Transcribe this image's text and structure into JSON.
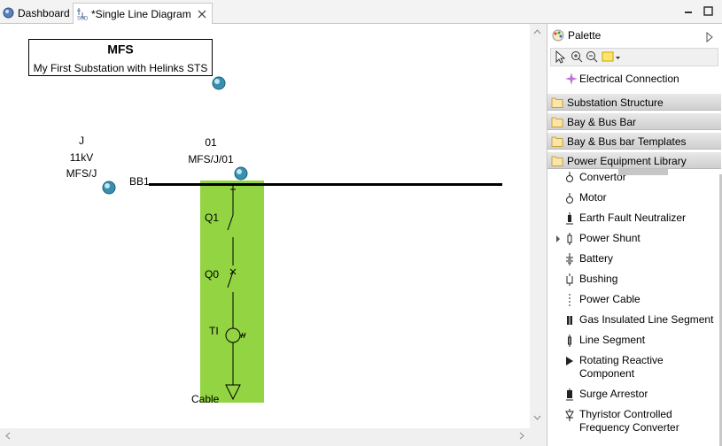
{
  "tabs": [
    "Dashboard",
    "*Single Line Diagram"
  ],
  "diagram": {
    "title": "MFS",
    "subtitle": "My First Substation with Helinks STS",
    "voltage_level": {
      "name": "J",
      "voltage": "11kV",
      "path": "MFS/J"
    },
    "bay": {
      "name": "01",
      "path": "MFS/J/01"
    },
    "busbar": "BB1",
    "equipment": [
      "Q1",
      "Q0",
      "TI",
      "Cable"
    ]
  },
  "palette": {
    "title": "Palette",
    "tools": [
      "Electrical Connection"
    ],
    "drawers": [
      "Substation Structure",
      "Bay & Bus Bar",
      "Bay & Bus bar Templates",
      "Power Equipment Library"
    ],
    "items": [
      "Convertor",
      "Motor",
      "Earth Fault Neutralizer",
      "Power Shunt",
      "Battery",
      "Bushing",
      "Power Cable",
      "Gas Insulated Line Segment",
      "Line Segment",
      "Rotating Reactive Component",
      "Surge Arrestor",
      "Thyristor Controlled Frequency Converter"
    ]
  }
}
